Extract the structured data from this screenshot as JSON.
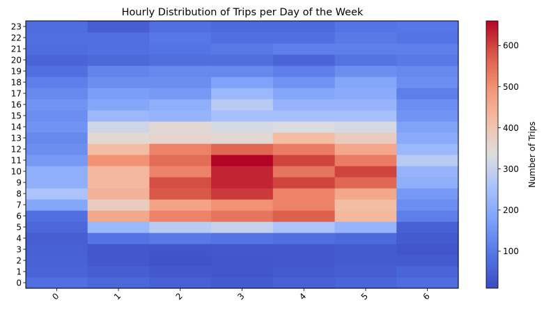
{
  "chart_data": {
    "type": "heatmap",
    "title": "Hourly Distribution of Trips per Day of the Week",
    "x_categories": [
      "0",
      "1",
      "2",
      "3",
      "4",
      "5",
      "6"
    ],
    "y_categories": [
      "0",
      "1",
      "2",
      "3",
      "4",
      "5",
      "6",
      "7",
      "8",
      "9",
      "10",
      "11",
      "12",
      "13",
      "14",
      "15",
      "16",
      "17",
      "18",
      "19",
      "20",
      "21",
      "22",
      "23"
    ],
    "values": [
      [
        80,
        65,
        50,
        40,
        50,
        60,
        75
      ],
      [
        60,
        45,
        35,
        30,
        40,
        45,
        60
      ],
      [
        55,
        35,
        25,
        30,
        35,
        40,
        40
      ],
      [
        50,
        35,
        30,
        35,
        35,
        40,
        30
      ],
      [
        45,
        90,
        100,
        90,
        80,
        70,
        40
      ],
      [
        65,
        230,
        280,
        300,
        260,
        220,
        50
      ],
      [
        80,
        460,
        520,
        540,
        570,
        430,
        110
      ],
      [
        190,
        380,
        470,
        500,
        520,
        420,
        140
      ],
      [
        260,
        440,
        580,
        610,
        520,
        460,
        160
      ],
      [
        210,
        430,
        590,
        630,
        600,
        560,
        210
      ],
      [
        210,
        430,
        520,
        630,
        540,
        600,
        220
      ],
      [
        160,
        500,
        550,
        660,
        600,
        530,
        280
      ],
      [
        140,
        420,
        520,
        560,
        530,
        460,
        230
      ],
      [
        130,
        350,
        360,
        350,
        420,
        380,
        200
      ],
      [
        150,
        310,
        350,
        320,
        330,
        320,
        180
      ],
      [
        140,
        230,
        220,
        250,
        250,
        250,
        150
      ],
      [
        150,
        190,
        210,
        280,
        220,
        220,
        140
      ],
      [
        130,
        170,
        160,
        230,
        190,
        200,
        110
      ],
      [
        110,
        140,
        140,
        180,
        150,
        190,
        140
      ],
      [
        80,
        120,
        130,
        130,
        110,
        140,
        130
      ],
      [
        60,
        70,
        80,
        80,
        60,
        90,
        100
      ],
      [
        75,
        80,
        90,
        100,
        110,
        110,
        110
      ],
      [
        80,
        80,
        95,
        80,
        80,
        100,
        90
      ],
      [
        75,
        45,
        80,
        70,
        70,
        90,
        95
      ]
    ],
    "colorbar": {
      "label": "Number of Trips",
      "min": 10,
      "max": 660,
      "ticks": [
        100,
        200,
        300,
        400,
        500,
        600
      ]
    },
    "colormap": "coolwarm"
  }
}
